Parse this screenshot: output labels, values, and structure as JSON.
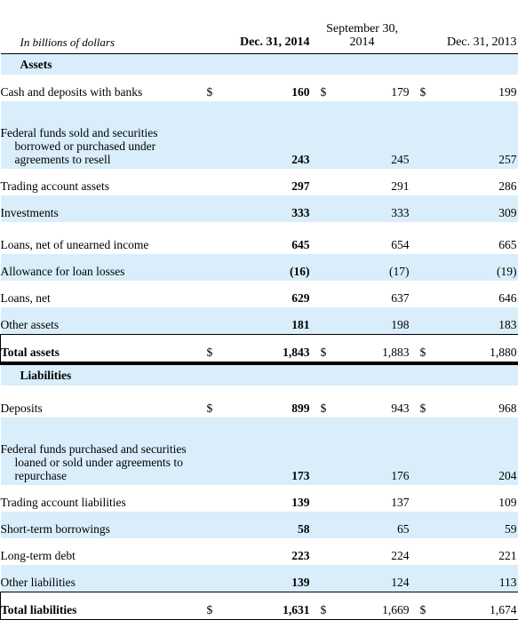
{
  "header": {
    "unit_label": "In billions of dollars",
    "col1": "Dec. 31, 2014",
    "col2_line1": "September 30,",
    "col2_line2": "2014",
    "col3": "Dec. 31, 2013"
  },
  "assets": {
    "title": "Assets",
    "rows": [
      {
        "label": "Cash and deposits with banks",
        "d1": "$",
        "v1": "160",
        "d2": "$",
        "v2": "179",
        "d3": "$",
        "v3": "199"
      },
      {
        "label": "Federal funds sold and securities borrowed or purchased under agreements to resell",
        "v1": "243",
        "v2": "245",
        "v3": "257"
      },
      {
        "label": "Trading account assets",
        "v1": "297",
        "v2": "291",
        "v3": "286"
      },
      {
        "label": "Investments",
        "v1": "333",
        "v2": "333",
        "v3": "309"
      },
      {
        "label": "Loans, net of unearned income",
        "v1": "645",
        "v2": "654",
        "v3": "665"
      },
      {
        "label": "Allowance for loan losses",
        "v1": "(16)",
        "v2": "(17)",
        "v3": "(19)"
      },
      {
        "label": "Loans, net",
        "v1": "629",
        "v2": "637",
        "v3": "646"
      },
      {
        "label": "Other assets",
        "v1": "181",
        "v2": "198",
        "v3": "183"
      }
    ],
    "total": {
      "label": "Total assets",
      "d1": "$",
      "v1": "1,843",
      "d2": "$",
      "v2": "1,883",
      "d3": "$",
      "v3": "1,880"
    }
  },
  "liabilities": {
    "title": "Liabilities",
    "rows": [
      {
        "label": "Deposits",
        "d1": "$",
        "v1": "899",
        "d2": "$",
        "v2": "943",
        "d3": "$",
        "v3": "968"
      },
      {
        "label": "Federal funds purchased and securities loaned or sold under agreements to repurchase",
        "v1": "173",
        "v2": "176",
        "v3": "204"
      },
      {
        "label": "Trading account liabilities",
        "v1": "139",
        "v2": "137",
        "v3": "109"
      },
      {
        "label": "Short-term borrowings",
        "v1": "58",
        "v2": "65",
        "v3": "59"
      },
      {
        "label": "Long-term debt",
        "v1": "223",
        "v2": "224",
        "v3": "221"
      },
      {
        "label": "Other liabilities",
        "v1": "139",
        "v2": "124",
        "v3": "113"
      }
    ],
    "total": {
      "label": "Total liabilities",
      "d1": "$",
      "v1": "1,631",
      "d2": "$",
      "v2": "1,669",
      "d3": "$",
      "v3": "1,674"
    }
  },
  "colors": {
    "row_shade": "#d9eefa",
    "rule": "#000000"
  }
}
